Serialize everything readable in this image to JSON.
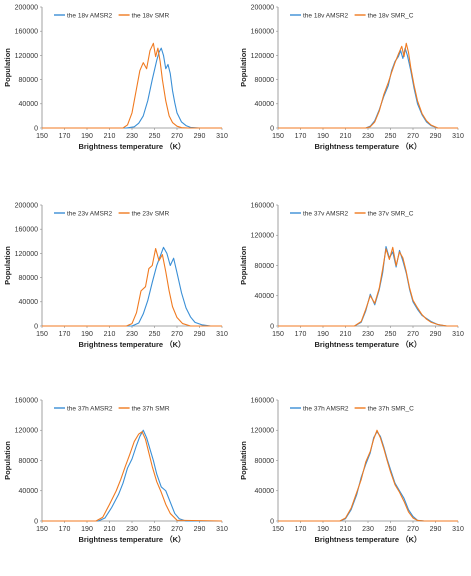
{
  "chart_data": [
    {
      "type": "line",
      "xlabel": "Brightness temperature （K）",
      "ylabel": "Population",
      "xlim": [
        150,
        310
      ],
      "ylim": [
        0,
        200000
      ],
      "xticks": [
        150,
        170,
        190,
        210,
        230,
        250,
        270,
        290,
        310
      ],
      "yticks": [
        0,
        40000,
        80000,
        120000,
        160000,
        200000
      ],
      "legend": "top-left",
      "series": [
        {
          "name": "the 18v AMSR2",
          "color": "#3a8fd6",
          "x": [
            150,
            225,
            232,
            236,
            240,
            244,
            248,
            252,
            254,
            256,
            258,
            260,
            262,
            264,
            266,
            268,
            270,
            274,
            278,
            282,
            290,
            310
          ],
          "y": [
            0,
            0,
            2000,
            8000,
            20000,
            45000,
            80000,
            112000,
            125000,
            132000,
            120000,
            98000,
            105000,
            90000,
            62000,
            42000,
            25000,
            10000,
            4000,
            1000,
            0,
            0
          ]
        },
        {
          "name": "the 18v SMR",
          "color": "#f07a20",
          "x": [
            150,
            222,
            226,
            230,
            234,
            237,
            240,
            243,
            246,
            249,
            251,
            253,
            255,
            257,
            260,
            263,
            266,
            270,
            274,
            280,
            310
          ],
          "y": [
            0,
            0,
            5000,
            25000,
            65000,
            95000,
            108000,
            98000,
            128000,
            140000,
            118000,
            132000,
            110000,
            80000,
            45000,
            20000,
            9000,
            3000,
            500,
            0,
            0
          ]
        }
      ]
    },
    {
      "type": "line",
      "xlabel": "Brightness temperature （K）",
      "ylabel": "Population",
      "xlim": [
        150,
        310
      ],
      "ylim": [
        0,
        200000
      ],
      "xticks": [
        150,
        170,
        190,
        210,
        230,
        250,
        270,
        290,
        310
      ],
      "yticks": [
        0,
        40000,
        80000,
        120000,
        160000,
        200000
      ],
      "legend": "top-left",
      "series": [
        {
          "name": "the 18v AMSR2",
          "color": "#3a8fd6",
          "x": [
            150,
            228,
            232,
            236,
            240,
            244,
            248,
            251,
            254,
            257,
            259,
            261,
            263,
            265,
            268,
            271,
            274,
            278,
            282,
            286,
            292,
            310
          ],
          "y": [
            0,
            0,
            3000,
            12000,
            30000,
            52000,
            70000,
            95000,
            110000,
            118000,
            128000,
            115000,
            132000,
            120000,
            95000,
            65000,
            40000,
            22000,
            10000,
            4000,
            0,
            0
          ]
        },
        {
          "name": "the 18v SMR_C",
          "color": "#f07a20",
          "x": [
            150,
            228,
            232,
            236,
            240,
            244,
            248,
            251,
            254,
            257,
            260,
            262,
            264,
            266,
            268,
            271,
            274,
            278,
            282,
            286,
            292,
            310
          ],
          "y": [
            0,
            0,
            2000,
            10000,
            28000,
            55000,
            75000,
            92000,
            108000,
            122000,
            135000,
            118000,
            140000,
            125000,
            100000,
            70000,
            45000,
            24000,
            12000,
            5000,
            0,
            0
          ]
        }
      ]
    },
    {
      "type": "line",
      "xlabel": "Brightness temperature （K）",
      "ylabel": "Population",
      "xlim": [
        150,
        310
      ],
      "ylim": [
        0,
        200000
      ],
      "xticks": [
        150,
        170,
        190,
        210,
        230,
        250,
        270,
        290,
        310
      ],
      "yticks": [
        0,
        40000,
        80000,
        120000,
        160000,
        200000
      ],
      "legend": "top-left",
      "series": [
        {
          "name": "the 23v AMSR2",
          "color": "#3a8fd6",
          "x": [
            150,
            230,
            236,
            240,
            244,
            248,
            252,
            255,
            258,
            261,
            264,
            267,
            270,
            274,
            278,
            282,
            286,
            292,
            300,
            310
          ],
          "y": [
            0,
            0,
            5000,
            20000,
            42000,
            72000,
            100000,
            115000,
            130000,
            120000,
            100000,
            112000,
            88000,
            55000,
            30000,
            15000,
            6000,
            2000,
            0,
            0
          ]
        },
        {
          "name": "the 23v SMR",
          "color": "#f07a20",
          "x": [
            150,
            225,
            230,
            234,
            238,
            242,
            245,
            248,
            251,
            254,
            257,
            260,
            263,
            266,
            270,
            275,
            282,
            310
          ],
          "y": [
            0,
            0,
            4000,
            22000,
            58000,
            65000,
            95000,
            100000,
            128000,
            108000,
            118000,
            90000,
            58000,
            32000,
            14000,
            4000,
            0,
            0
          ]
        }
      ]
    },
    {
      "type": "line",
      "xlabel": "Brightness temperature （K）",
      "ylabel": "Population",
      "xlim": [
        150,
        310
      ],
      "ylim": [
        0,
        160000
      ],
      "xticks": [
        150,
        170,
        190,
        210,
        230,
        250,
        270,
        290,
        310
      ],
      "yticks": [
        0,
        40000,
        80000,
        120000,
        160000
      ],
      "legend": "top-left",
      "series": [
        {
          "name": "the 37v AMSR2",
          "color": "#3a8fd6",
          "x": [
            150,
            218,
            224,
            228,
            232,
            236,
            240,
            243,
            246,
            249,
            252,
            255,
            258,
            261,
            264,
            267,
            270,
            274,
            278,
            282,
            286,
            292,
            300,
            310
          ],
          "y": [
            0,
            0,
            5000,
            20000,
            42000,
            28000,
            48000,
            70000,
            105000,
            90000,
            98000,
            78000,
            100000,
            86000,
            70000,
            48000,
            32000,
            22000,
            14000,
            10000,
            6000,
            2000,
            0,
            0
          ]
        },
        {
          "name": "the 37v SMR_C",
          "color": "#f07a20",
          "x": [
            150,
            218,
            224,
            228,
            232,
            236,
            240,
            243,
            246,
            249,
            252,
            255,
            258,
            261,
            264,
            267,
            270,
            274,
            278,
            282,
            286,
            292,
            300,
            310
          ],
          "y": [
            0,
            0,
            6000,
            22000,
            40000,
            30000,
            50000,
            75000,
            102000,
            88000,
            104000,
            80000,
            98000,
            90000,
            72000,
            50000,
            34000,
            24000,
            15000,
            9000,
            5000,
            2000,
            0,
            0
          ]
        }
      ]
    },
    {
      "type": "line",
      "xlabel": "Brightness temperature （K）",
      "ylabel": "Population",
      "xlim": [
        150,
        310
      ],
      "ylim": [
        0,
        160000
      ],
      "xticks": [
        150,
        170,
        190,
        210,
        230,
        250,
        270,
        290,
        310
      ],
      "yticks": [
        0,
        40000,
        80000,
        120000,
        160000
      ],
      "legend": "top-left",
      "series": [
        {
          "name": "the 37h AMSR2",
          "color": "#3a8fd6",
          "x": [
            150,
            200,
            206,
            212,
            218,
            222,
            226,
            230,
            234,
            237,
            240,
            243,
            246,
            249,
            252,
            256,
            260,
            264,
            268,
            272,
            278,
            310
          ],
          "y": [
            0,
            0,
            4000,
            18000,
            35000,
            50000,
            70000,
            82000,
            100000,
            112000,
            120000,
            110000,
            95000,
            80000,
            62000,
            45000,
            40000,
            25000,
            10000,
            3000,
            0,
            0
          ]
        },
        {
          "name": "the 37h SMR",
          "color": "#f07a20",
          "x": [
            150,
            198,
            204,
            210,
            216,
            220,
            224,
            228,
            232,
            236,
            239,
            242,
            245,
            248,
            252,
            256,
            260,
            264,
            270,
            310
          ],
          "y": [
            0,
            0,
            5000,
            22000,
            40000,
            55000,
            72000,
            88000,
            105000,
            115000,
            118000,
            108000,
            90000,
            72000,
            52000,
            38000,
            22000,
            10000,
            1000,
            0
          ]
        }
      ]
    },
    {
      "type": "line",
      "xlabel": "Brightness temperature （K）",
      "ylabel": "Population",
      "xlim": [
        150,
        310
      ],
      "ylim": [
        0,
        160000
      ],
      "xticks": [
        150,
        170,
        190,
        210,
        230,
        250,
        270,
        290,
        310
      ],
      "yticks": [
        0,
        40000,
        80000,
        120000,
        160000
      ],
      "legend": "top-left",
      "series": [
        {
          "name": "the 37h AMSR2",
          "color": "#3a8fd6",
          "x": [
            150,
            205,
            210,
            215,
            220,
            224,
            228,
            232,
            235,
            238,
            241,
            244,
            247,
            250,
            254,
            258,
            262,
            266,
            270,
            274,
            280,
            310
          ],
          "y": [
            0,
            0,
            3000,
            15000,
            35000,
            58000,
            75000,
            90000,
            110000,
            118000,
            112000,
            98000,
            82000,
            68000,
            50000,
            40000,
            30000,
            15000,
            6000,
            1000,
            0,
            0
          ]
        },
        {
          "name": "the 37h SMR_C",
          "color": "#f07a20",
          "x": [
            150,
            205,
            210,
            215,
            220,
            224,
            228,
            232,
            235,
            238,
            241,
            244,
            247,
            250,
            254,
            258,
            262,
            266,
            270,
            274,
            280,
            310
          ],
          "y": [
            0,
            0,
            4000,
            17000,
            38000,
            55000,
            78000,
            92000,
            108000,
            120000,
            110000,
            96000,
            80000,
            65000,
            48000,
            38000,
            26000,
            12000,
            4000,
            800,
            0,
            0
          ]
        }
      ]
    }
  ]
}
